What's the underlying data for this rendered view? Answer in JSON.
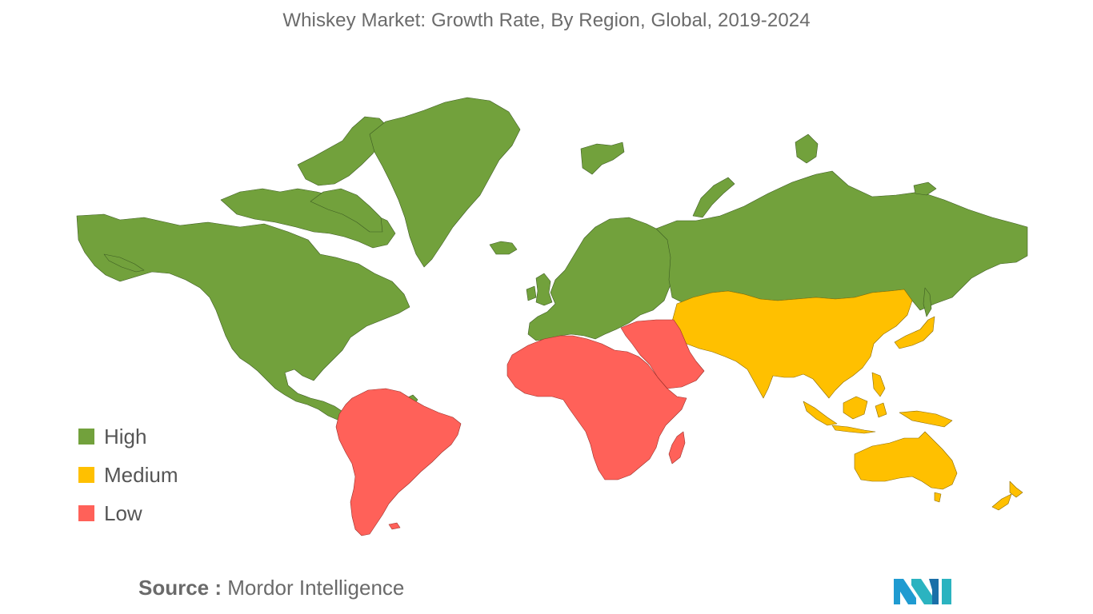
{
  "title": "Whiskey Market: Growth Rate, By Region, Global, 2019-2024",
  "legend": [
    {
      "label": "High",
      "color": "#72a13c"
    },
    {
      "label": "Medium",
      "color": "#ffc000"
    },
    {
      "label": "Low",
      "color": "#ff6159"
    }
  ],
  "regions": [
    {
      "name": "North America",
      "level": "High"
    },
    {
      "name": "Greenland",
      "level": "High"
    },
    {
      "name": "Europe",
      "level": "High"
    },
    {
      "name": "Russia",
      "level": "High"
    },
    {
      "name": "French Guiana",
      "level": "High"
    },
    {
      "name": "Asia",
      "level": "Medium"
    },
    {
      "name": "Australia",
      "level": "Medium"
    },
    {
      "name": "New Zealand",
      "level": "Medium"
    },
    {
      "name": "South America",
      "level": "Low"
    },
    {
      "name": "Africa",
      "level": "Low"
    },
    {
      "name": "Middle East",
      "level": "Low"
    }
  ],
  "source": {
    "label": "Source :",
    "value": "Mordor Intelligence"
  },
  "logo_icon": "mordor-intelligence-logo-icon"
}
